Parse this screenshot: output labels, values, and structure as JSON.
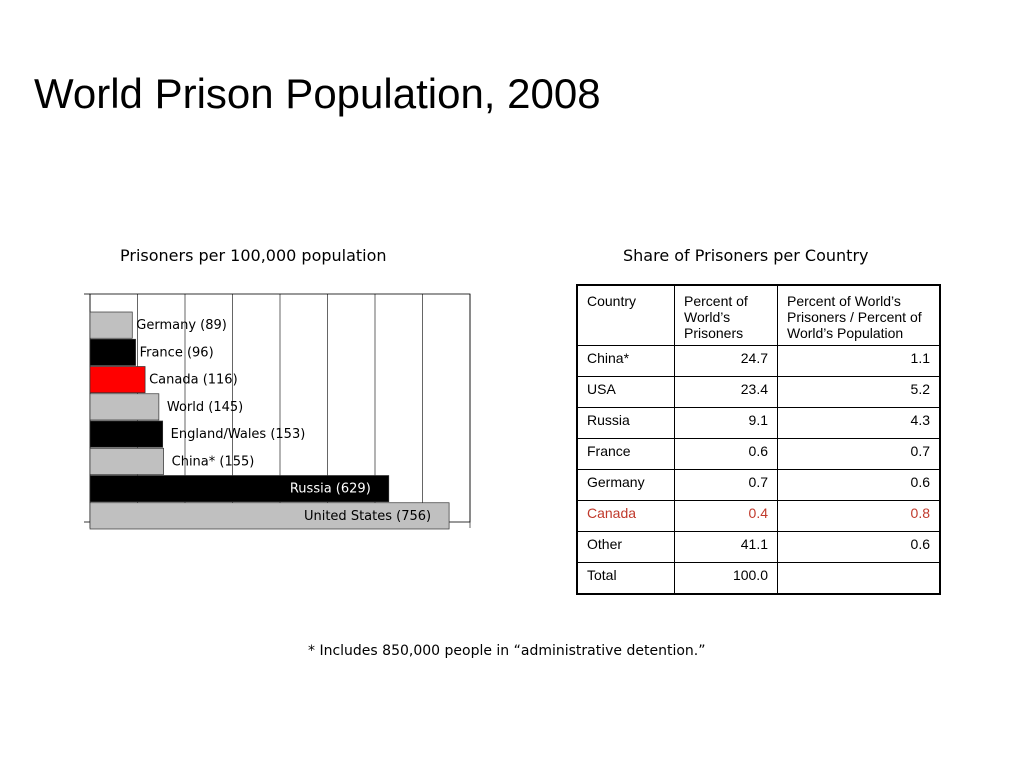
{
  "page_title": "World Prison Population, 2008",
  "chart_data": {
    "type": "bar",
    "orientation": "horizontal",
    "title": "Prisoners per 100,000 population",
    "xlim": [
      0,
      800
    ],
    "x_gridlines": [
      0,
      100,
      200,
      300,
      400,
      500,
      600,
      700,
      800
    ],
    "grid": true,
    "bars": [
      {
        "label": "Germany (89)",
        "value": 89,
        "color": "#c0c0c0"
      },
      {
        "label": "France (96)",
        "value": 96,
        "color": "#000000"
      },
      {
        "label": "Canada (116)",
        "value": 116,
        "color": "#ff0000"
      },
      {
        "label": "World (145)",
        "value": 145,
        "color": "#c0c0c0"
      },
      {
        "label": "England/Wales (153)",
        "value": 153,
        "color": "#000000"
      },
      {
        "label": "China* (155)",
        "value": 155,
        "color": "#c0c0c0"
      },
      {
        "label": "Russia (629)",
        "value": 629,
        "color": "#000000",
        "label_color": "#ffffff",
        "label_inside": true
      },
      {
        "label": "United States (756)",
        "value": 756,
        "color": "#c0c0c0",
        "label_inside": true
      }
    ]
  },
  "table": {
    "title": "Share of Prisoners per Country",
    "headers": [
      "Country",
      "Percent of World’s Prisoners",
      "Percent of World’s Prisoners / Percent of World’s Population"
    ],
    "rows": [
      {
        "country": "China*",
        "pct": "24.7",
        "ratio": "1.1"
      },
      {
        "country": "USA",
        "pct": "23.4",
        "ratio": "5.2"
      },
      {
        "country": "Russia",
        "pct": "9.1",
        "ratio": "4.3"
      },
      {
        "country": "France",
        "pct": "0.6",
        "ratio": "0.7"
      },
      {
        "country": "Germany",
        "pct": "0.7",
        "ratio": "0.6"
      },
      {
        "country": "Canada",
        "pct": "0.4",
        "ratio": "0.8"
      },
      {
        "country": "Other",
        "pct": "41.1",
        "ratio": "0.6"
      },
      {
        "country": "Total",
        "pct": "100.0",
        "ratio": ""
      }
    ],
    "highlight_color": "#c0392b"
  },
  "footnote": "* Includes 850,000 people in “administrative detention.”"
}
